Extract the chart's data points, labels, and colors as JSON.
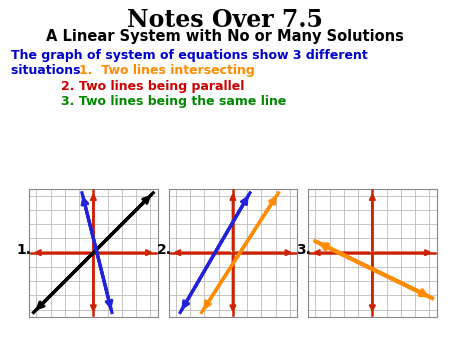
{
  "title": "Notes Over 7.5",
  "subtitle": "A Linear System with No or Many Solutions",
  "item1_color": "#FF8C00",
  "item1_text": "1.  Two lines intersecting",
  "item2_color": "#CC0000",
  "item2_text": "2. Two lines being parallel",
  "item3_color": "#008800",
  "item3_text": "3. Two lines being the same line",
  "blue_text_color": "#0000CC",
  "black_text_color": "#000000",
  "grid_color": "#BBBBBB",
  "axis_color": "#CC2200",
  "graph_labels": [
    "1.",
    "2.",
    "3."
  ],
  "bg_color": "#FFFFFF",
  "graph1_line1_color": "#000000",
  "graph1_line2_color": "#2222DD",
  "graph2_line1_color": "#FF8C00",
  "graph2_line2_color": "#2222DD",
  "graph3_line1_color": "#FF8C00"
}
